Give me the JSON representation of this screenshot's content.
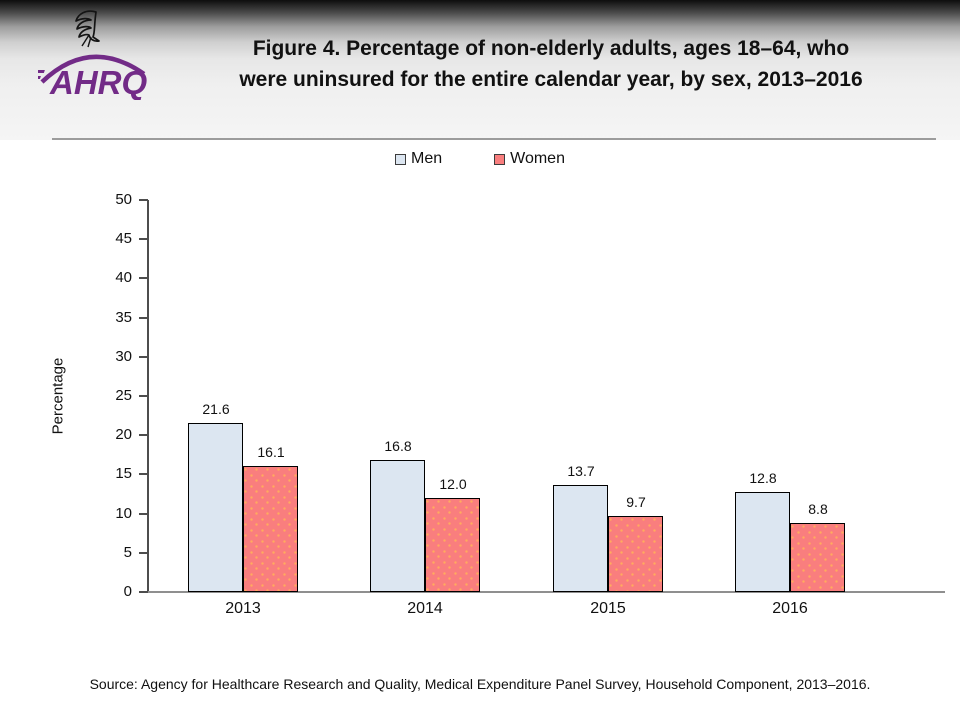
{
  "header": {
    "title_line1": "Figure 4. Percentage of non-elderly adults, ages 18–64, who",
    "title_line2": "were uninsured for the entire calendar year, by sex, 2013–2016",
    "logo_text": "AHRQ"
  },
  "legend": {
    "items": [
      "Men",
      "Women"
    ]
  },
  "chart_data": {
    "type": "bar",
    "title": "Figure 4. Percentage of non-elderly adults, ages 18–64, who were uninsured for the entire calendar year, by sex, 2013–2016",
    "categories": [
      "2013",
      "2014",
      "2015",
      "2016"
    ],
    "series": [
      {
        "name": "Men",
        "color": "#dce6f1",
        "pattern": "none",
        "values": [
          21.6,
          16.8,
          13.7,
          12.8
        ]
      },
      {
        "name": "Women",
        "color": "#f97e7e",
        "pattern": "dots",
        "values": [
          16.1,
          12.0,
          9.7,
          8.8
        ]
      }
    ],
    "xlabel": "",
    "ylabel": "Percentage",
    "ylim": [
      0,
      50
    ],
    "ytick_step": 5,
    "grid": false,
    "legend_position": "top",
    "value_labels": true
  },
  "colors": {
    "men_bar": "#dce6f1",
    "women_bar": "#f97e7e",
    "bar_border": "#000000",
    "logo_purple": "#722b87",
    "axis": "#4d4d4d"
  },
  "footer": {
    "source": "Source: Agency for Healthcare Research and Quality, Medical Expenditure Panel Survey, Household Component, 2013–2016."
  }
}
